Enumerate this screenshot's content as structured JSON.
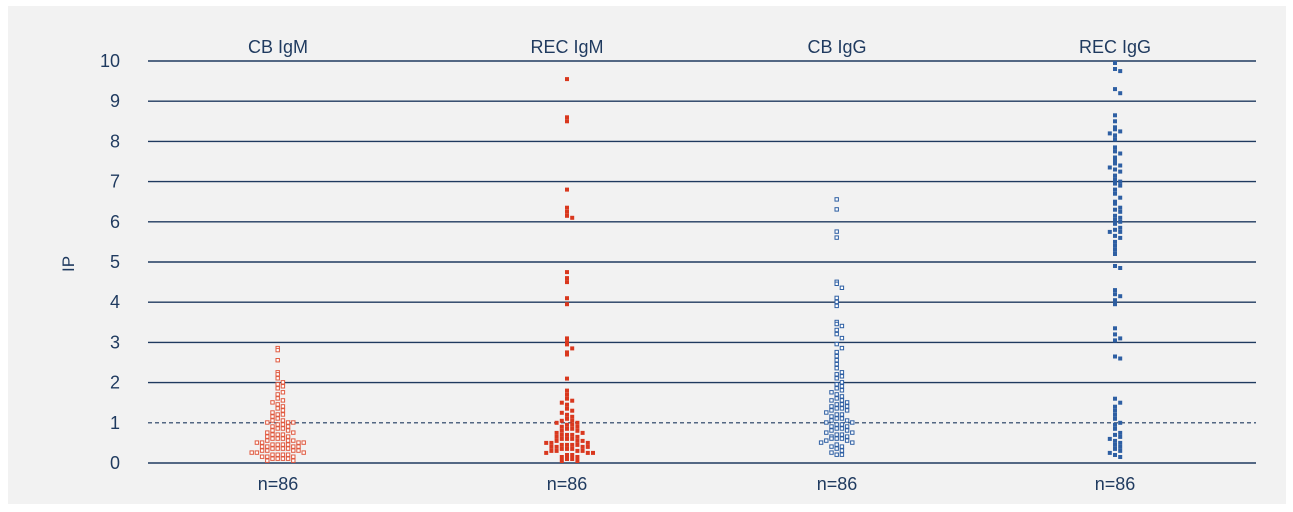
{
  "chart_data": {
    "type": "scatter",
    "ylabel": "IP",
    "ylim": [
      0,
      10
    ],
    "yticks": [
      "0",
      "1",
      "2",
      "3",
      "4",
      "5",
      "6",
      "7",
      "8",
      "9",
      "10"
    ],
    "threshold": 1,
    "grid": true,
    "categories": [
      "CB IgM",
      "REC IgM",
      "CB IgG",
      "REC IgG"
    ],
    "colors": {
      "igm": "#d9381e",
      "igg": "#2e5fa3",
      "axis": "#1f3a5f"
    },
    "series": [
      {
        "name": "CB IgM",
        "marker": "open-square",
        "color": "#e05a40",
        "n_label": "n=86",
        "values": [
          2.85,
          2.8,
          2.55,
          2.25,
          2.2,
          2.1,
          2.0,
          1.95,
          1.9,
          1.85,
          1.75,
          1.7,
          1.6,
          1.55,
          1.5,
          1.45,
          1.4,
          1.35,
          1.3,
          1.25,
          1.2,
          1.2,
          1.15,
          1.1,
          1.05,
          1.05,
          1.0,
          1.0,
          1.0,
          0.95,
          0.95,
          0.9,
          0.9,
          0.85,
          0.85,
          0.8,
          0.8,
          0.75,
          0.75,
          0.7,
          0.7,
          0.7,
          0.65,
          0.65,
          0.6,
          0.6,
          0.6,
          0.55,
          0.55,
          0.55,
          0.5,
          0.5,
          0.5,
          0.5,
          0.45,
          0.45,
          0.45,
          0.45,
          0.4,
          0.4,
          0.4,
          0.4,
          0.35,
          0.35,
          0.35,
          0.35,
          0.3,
          0.3,
          0.3,
          0.3,
          0.25,
          0.25,
          0.25,
          0.2,
          0.2,
          0.2,
          0.2,
          0.15,
          0.15,
          0.15,
          0.1,
          0.1,
          0.1,
          0.1,
          0.05,
          0.05
        ]
      },
      {
        "name": "REC IgM",
        "marker": "filled-square",
        "color": "#d9381e",
        "n_label": "n=86",
        "values": [
          9.55,
          8.6,
          8.5,
          6.8,
          6.35,
          6.25,
          6.15,
          6.1,
          4.75,
          4.6,
          4.5,
          4.1,
          3.95,
          3.1,
          3.0,
          2.95,
          2.85,
          2.75,
          2.7,
          2.1,
          1.8,
          1.7,
          1.6,
          1.55,
          1.5,
          1.45,
          1.35,
          1.3,
          1.25,
          1.2,
          1.15,
          1.1,
          1.05,
          1.05,
          1.0,
          1.0,
          0.95,
          0.95,
          0.9,
          0.9,
          0.85,
          0.85,
          0.8,
          0.8,
          0.75,
          0.75,
          0.7,
          0.7,
          0.7,
          0.65,
          0.65,
          0.6,
          0.6,
          0.6,
          0.55,
          0.55,
          0.55,
          0.5,
          0.5,
          0.5,
          0.45,
          0.45,
          0.45,
          0.45,
          0.4,
          0.4,
          0.4,
          0.4,
          0.35,
          0.35,
          0.35,
          0.3,
          0.3,
          0.3,
          0.3,
          0.25,
          0.25,
          0.25,
          0.2,
          0.2,
          0.15,
          0.15,
          0.1,
          0.1,
          0.05,
          0.05
        ]
      },
      {
        "name": "CB IgG",
        "marker": "open-square",
        "color": "#2e5fa3",
        "n_label": "n=86",
        "values": [
          6.55,
          6.3,
          5.75,
          5.6,
          4.5,
          4.45,
          4.35,
          4.1,
          4.0,
          3.9,
          3.5,
          3.45,
          3.4,
          3.3,
          3.2,
          3.1,
          2.95,
          2.85,
          2.75,
          2.65,
          2.55,
          2.45,
          2.35,
          2.25,
          2.2,
          2.15,
          2.1,
          2.0,
          1.95,
          1.9,
          1.85,
          1.8,
          1.75,
          1.7,
          1.65,
          1.6,
          1.55,
          1.55,
          1.5,
          1.45,
          1.45,
          1.4,
          1.4,
          1.35,
          1.35,
          1.3,
          1.3,
          1.25,
          1.2,
          1.2,
          1.15,
          1.1,
          1.1,
          1.05,
          1.05,
          1.0,
          1.0,
          0.95,
          0.95,
          0.9,
          0.9,
          0.85,
          0.85,
          0.8,
          0.8,
          0.75,
          0.75,
          0.7,
          0.7,
          0.65,
          0.65,
          0.6,
          0.6,
          0.6,
          0.55,
          0.55,
          0.5,
          0.5,
          0.45,
          0.4,
          0.4,
          0.35,
          0.3,
          0.25,
          0.2,
          0.2
        ]
      },
      {
        "name": "REC IgG",
        "marker": "filled-square",
        "color": "#2e5fa3",
        "n_label": "n=86",
        "values": [
          9.95,
          9.8,
          9.75,
          9.3,
          9.2,
          8.65,
          8.5,
          8.35,
          8.3,
          8.25,
          8.2,
          8.15,
          8.05,
          7.85,
          7.75,
          7.7,
          7.6,
          7.5,
          7.45,
          7.4,
          7.35,
          7.3,
          7.25,
          7.15,
          7.05,
          7.0,
          6.95,
          6.9,
          6.8,
          6.7,
          6.6,
          6.5,
          6.45,
          6.35,
          6.3,
          6.25,
          6.15,
          6.1,
          6.05,
          6.0,
          5.95,
          5.85,
          5.8,
          5.75,
          5.75,
          5.65,
          5.6,
          5.5,
          5.4,
          5.3,
          5.2,
          4.9,
          4.85,
          4.3,
          4.2,
          4.15,
          4.05,
          3.95,
          3.35,
          3.2,
          3.1,
          3.05,
          2.65,
          2.6,
          1.6,
          1.5,
          1.4,
          1.3,
          1.1,
          1.0,
          0.95,
          0.85,
          0.75,
          0.7,
          0.65,
          0.55,
          0.45,
          0.4,
          0.35,
          0.3,
          0.25,
          0.2,
          0.15,
          1.2,
          0.5,
          0.6
        ]
      }
    ]
  }
}
